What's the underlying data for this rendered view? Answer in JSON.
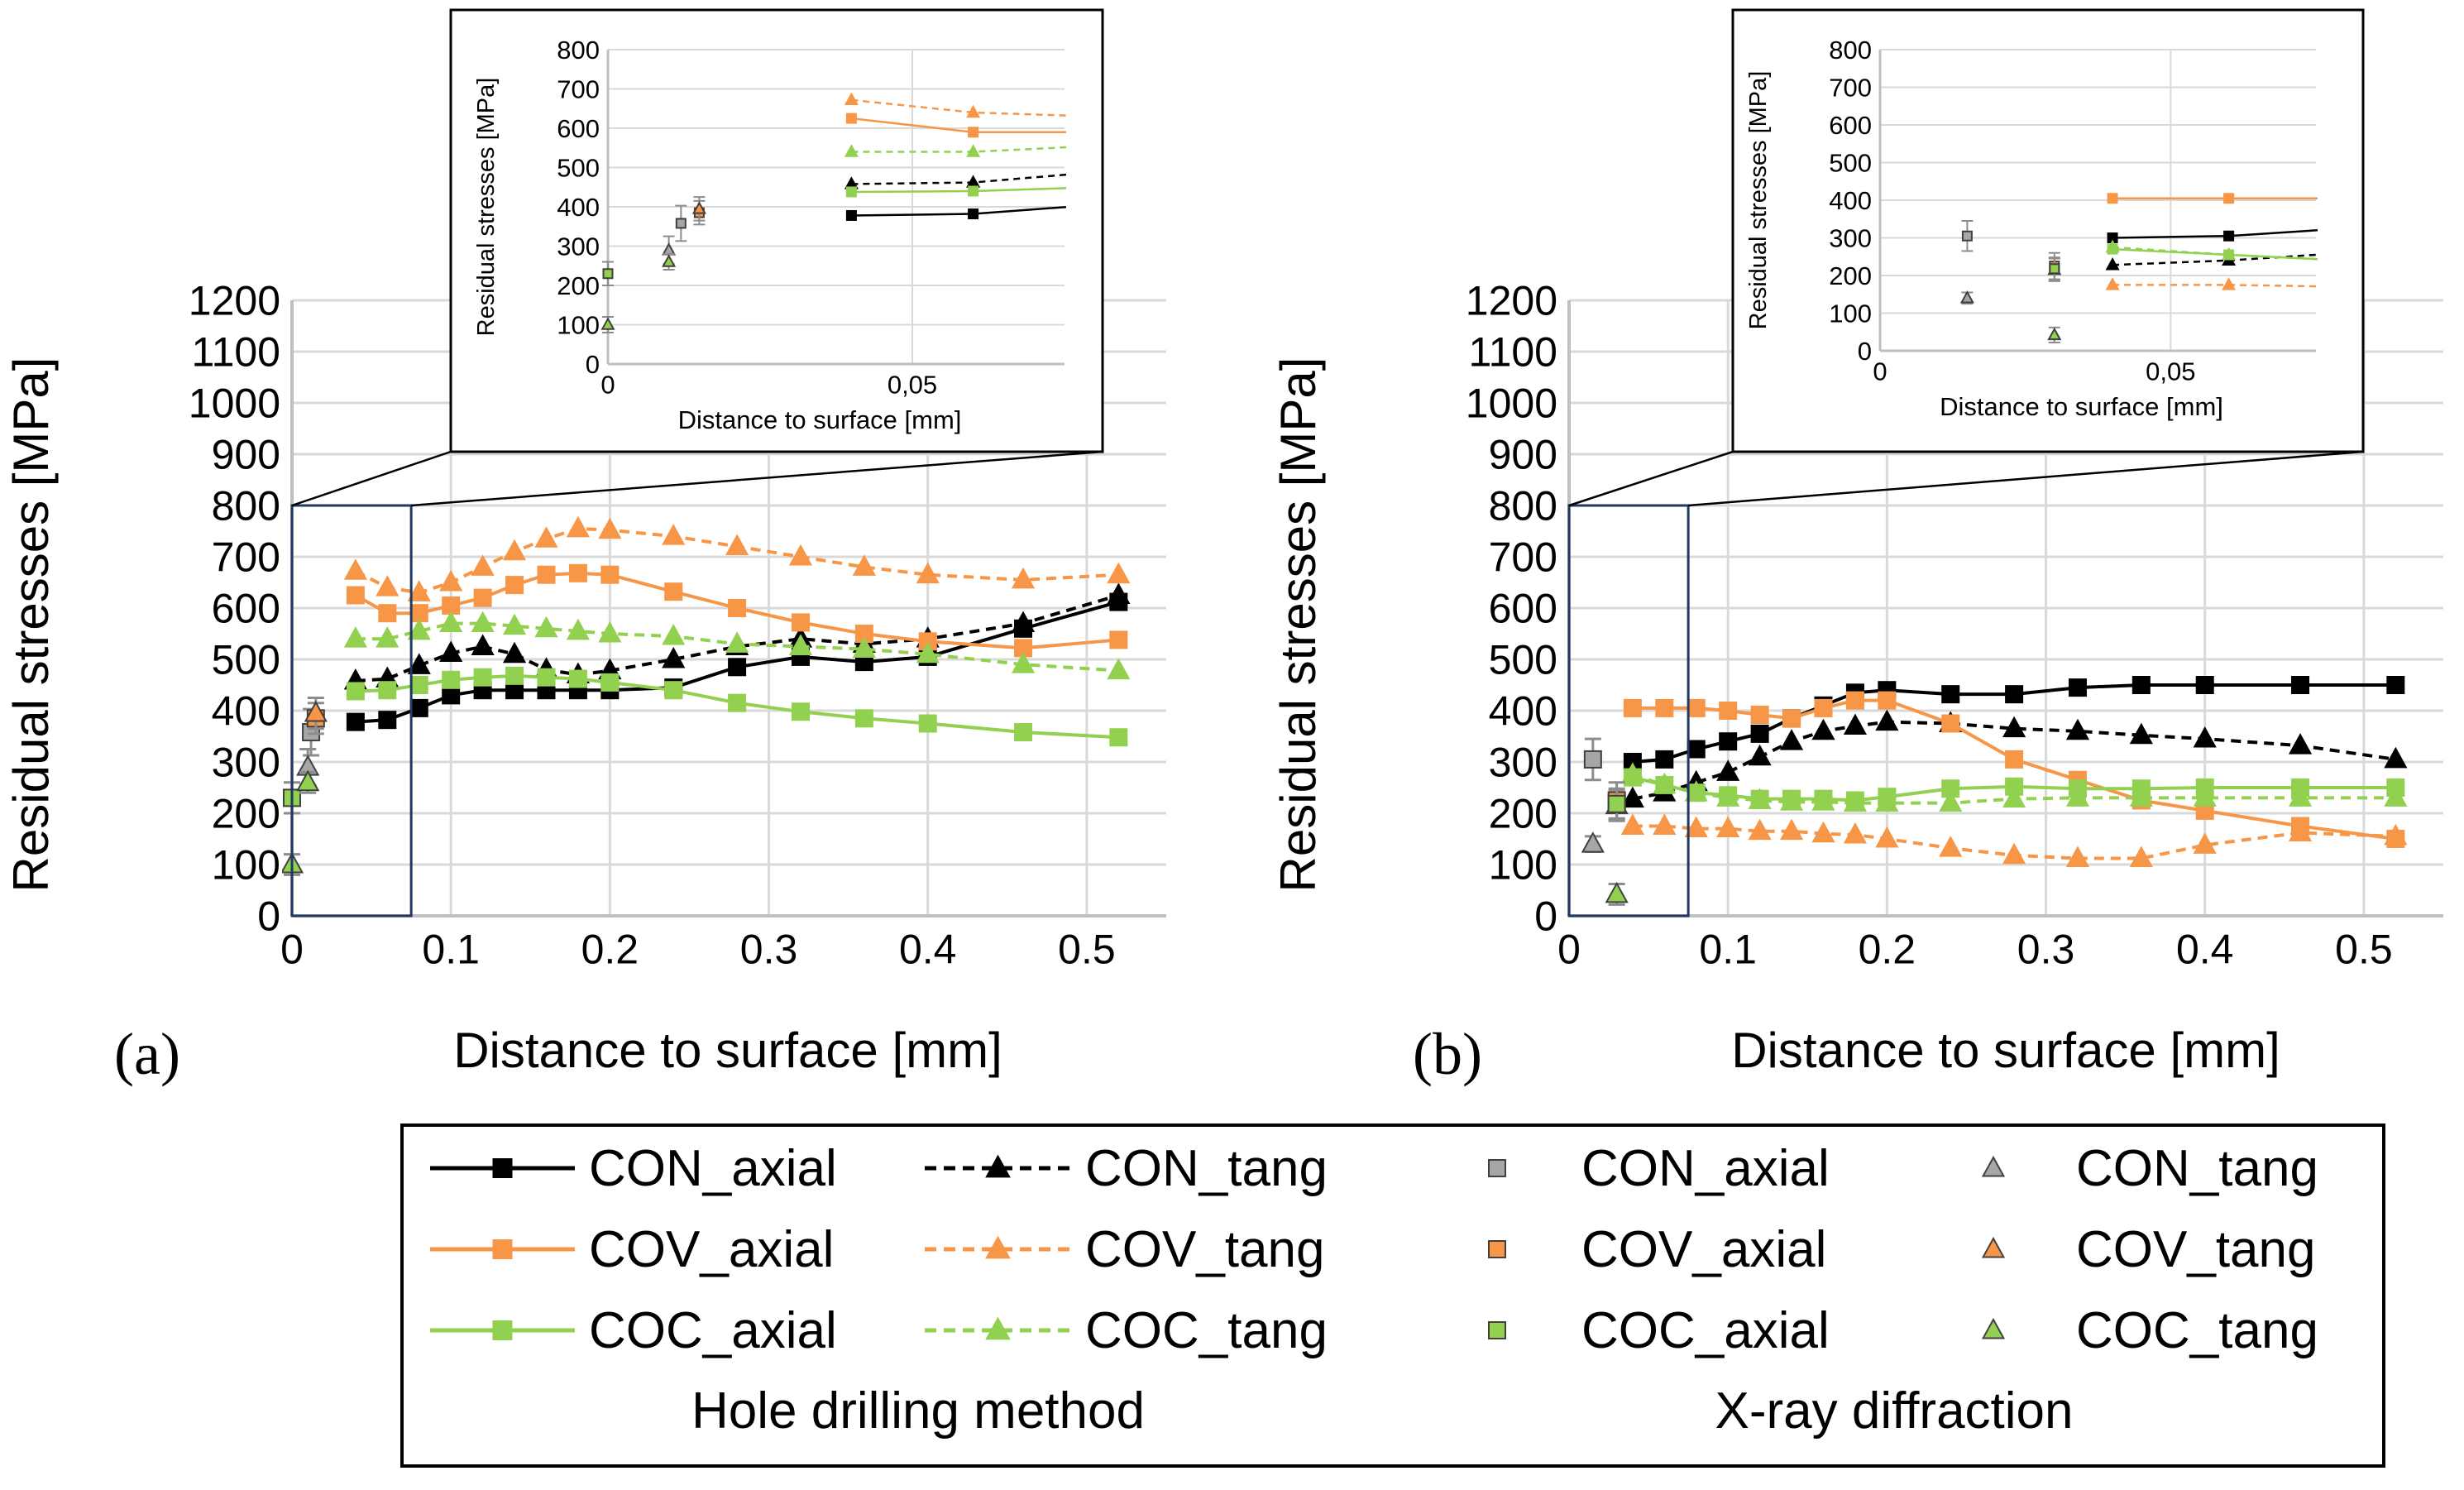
{
  "chart_data": [
    {
      "id": "a",
      "panel_label": "(a)",
      "type": "line",
      "xlabel": "Distance to surface [mm]",
      "ylabel": "Residual stresses [MPa]",
      "xlim": [
        0,
        0.55
      ],
      "ylim": [
        0,
        1200
      ],
      "xticks": [
        "0",
        "0.1",
        "0.2",
        "0.3",
        "0.4",
        "0.5"
      ],
      "xtick_values": [
        0,
        0.1,
        0.2,
        0.3,
        0.4,
        0.5
      ],
      "yticks": [
        "0",
        "100",
        "200",
        "300",
        "400",
        "500",
        "600",
        "700",
        "800",
        "900",
        "1000",
        "1100",
        "1200"
      ],
      "ytick_values": [
        0,
        100,
        200,
        300,
        400,
        500,
        600,
        700,
        800,
        900,
        1000,
        1100,
        1200
      ],
      "zoom_region": {
        "x": [
          0,
          0.075
        ],
        "y": [
          0,
          800
        ]
      },
      "series": [
        {
          "name": "CON_axial",
          "method": "hole",
          "color": "#000000",
          "style": "solid",
          "marker": "square",
          "x": [
            0.04,
            0.06,
            0.08,
            0.1,
            0.12,
            0.14,
            0.16,
            0.18,
            0.2,
            0.24,
            0.28,
            0.32,
            0.36,
            0.4,
            0.46,
            0.52
          ],
          "y": [
            378,
            382,
            405,
            430,
            440,
            440,
            440,
            440,
            440,
            445,
            485,
            505,
            495,
            505,
            560,
            612
          ]
        },
        {
          "name": "CON_tang",
          "method": "hole",
          "color": "#000000",
          "style": "dashed",
          "marker": "triangle",
          "x": [
            0.04,
            0.06,
            0.08,
            0.1,
            0.12,
            0.14,
            0.16,
            0.18,
            0.2,
            0.24,
            0.28,
            0.32,
            0.36,
            0.4,
            0.46,
            0.52
          ],
          "y": [
            458,
            462,
            488,
            512,
            525,
            510,
            480,
            470,
            478,
            500,
            525,
            540,
            530,
            540,
            570,
            625
          ]
        },
        {
          "name": "COV_axial",
          "method": "hole",
          "color": "#f79646",
          "style": "solid",
          "marker": "square",
          "x": [
            0.04,
            0.06,
            0.08,
            0.1,
            0.12,
            0.14,
            0.16,
            0.18,
            0.2,
            0.24,
            0.28,
            0.32,
            0.36,
            0.4,
            0.46,
            0.52
          ],
          "y": [
            625,
            590,
            590,
            605,
            620,
            645,
            665,
            668,
            665,
            632,
            600,
            572,
            550,
            535,
            522,
            538
          ]
        },
        {
          "name": "COV_tang",
          "method": "hole",
          "color": "#f79646",
          "style": "dashed",
          "marker": "triangle",
          "x": [
            0.04,
            0.06,
            0.08,
            0.1,
            0.12,
            0.14,
            0.16,
            0.18,
            0.2,
            0.24,
            0.28,
            0.32,
            0.36,
            0.4,
            0.46,
            0.52
          ],
          "y": [
            672,
            640,
            630,
            650,
            680,
            710,
            735,
            755,
            752,
            740,
            720,
            700,
            680,
            665,
            655,
            665
          ]
        },
        {
          "name": "COC_axial",
          "method": "hole",
          "color": "#92d050",
          "style": "solid",
          "marker": "square",
          "x": [
            0.04,
            0.06,
            0.08,
            0.1,
            0.12,
            0.14,
            0.16,
            0.18,
            0.2,
            0.24,
            0.28,
            0.32,
            0.36,
            0.4,
            0.46,
            0.52
          ],
          "y": [
            438,
            440,
            450,
            460,
            465,
            468,
            465,
            462,
            455,
            440,
            415,
            398,
            385,
            375,
            358,
            348
          ]
        },
        {
          "name": "COC_tang",
          "method": "hole",
          "color": "#92d050",
          "style": "dashed",
          "marker": "triangle",
          "x": [
            0.04,
            0.06,
            0.08,
            0.1,
            0.12,
            0.14,
            0.16,
            0.18,
            0.2,
            0.24,
            0.28,
            0.32,
            0.36,
            0.4,
            0.46,
            0.52
          ],
          "y": [
            540,
            540,
            555,
            570,
            570,
            565,
            560,
            555,
            550,
            545,
            530,
            525,
            520,
            510,
            490,
            478
          ]
        },
        {
          "name": "CON_axial",
          "method": "xrd",
          "color": "#a6a6a6",
          "marker": "square",
          "x": [
            0.012
          ],
          "y": [
            358
          ],
          "err": [
            45
          ]
        },
        {
          "name": "CON_tang",
          "method": "xrd",
          "color": "#a6a6a6",
          "marker": "triangle",
          "x": [
            0.01
          ],
          "y": [
            290
          ],
          "err": [
            35
          ]
        },
        {
          "name": "COV_axial",
          "method": "xrd",
          "color": "#f79646",
          "marker": "square",
          "x": [
            0.015
          ],
          "y": [
            385
          ],
          "err": [
            30
          ]
        },
        {
          "name": "COV_tang",
          "method": "xrd",
          "color": "#f79646",
          "marker": "triangle",
          "x": [
            0.015
          ],
          "y": [
            395
          ],
          "err": [
            30
          ]
        },
        {
          "name": "COC_axial",
          "method": "xrd",
          "color": "#92d050",
          "marker": "square",
          "x": [
            0.0
          ],
          "y": [
            230
          ],
          "err": [
            30
          ]
        },
        {
          "name": "COC_tang",
          "method": "xrd",
          "color": "#92d050",
          "marker": "triangle",
          "x": [
            0.0,
            0.01
          ],
          "y": [
            100,
            260
          ],
          "err": [
            20,
            20
          ]
        }
      ],
      "inset": {
        "xlabel": "Distance to surface [mm]",
        "ylabel": "Residual stresses [MPa]",
        "xlim": [
          0,
          0.075
        ],
        "ylim": [
          0,
          800
        ],
        "xticks": [
          "0",
          "0,05"
        ],
        "xtick_values": [
          0,
          0.05
        ],
        "yticks": [
          "0",
          "100",
          "200",
          "300",
          "400",
          "500",
          "600",
          "700",
          "800"
        ],
        "ytick_values": [
          0,
          100,
          200,
          300,
          400,
          500,
          600,
          700,
          800
        ]
      }
    },
    {
      "id": "b",
      "panel_label": "(b)",
      "type": "line",
      "xlabel": "Distance to surface [mm]",
      "ylabel": "Residual stresses [MPa]",
      "xlim": [
        0,
        0.55
      ],
      "ylim": [
        0,
        1200
      ],
      "xticks": [
        "0",
        "0.1",
        "0.2",
        "0.3",
        "0.4",
        "0.5"
      ],
      "xtick_values": [
        0,
        0.1,
        0.2,
        0.3,
        0.4,
        0.5
      ],
      "yticks": [
        "0",
        "100",
        "200",
        "300",
        "400",
        "500",
        "600",
        "700",
        "800",
        "900",
        "1000",
        "1100",
        "1200"
      ],
      "ytick_values": [
        0,
        100,
        200,
        300,
        400,
        500,
        600,
        700,
        800,
        900,
        1000,
        1100,
        1200
      ],
      "zoom_region": {
        "x": [
          0,
          0.075
        ],
        "y": [
          0,
          800
        ]
      },
      "series": [
        {
          "name": "CON_axial",
          "method": "hole",
          "color": "#000000",
          "style": "solid",
          "marker": "square",
          "x": [
            0.04,
            0.06,
            0.08,
            0.1,
            0.12,
            0.14,
            0.16,
            0.18,
            0.2,
            0.24,
            0.28,
            0.32,
            0.36,
            0.4,
            0.46,
            0.52
          ],
          "y": [
            300,
            305,
            325,
            340,
            355,
            385,
            410,
            435,
            440,
            432,
            432,
            445,
            450,
            450,
            450,
            450
          ]
        },
        {
          "name": "CON_tang",
          "method": "hole",
          "color": "#000000",
          "style": "dashed",
          "marker": "triangle",
          "x": [
            0.04,
            0.06,
            0.08,
            0.1,
            0.12,
            0.14,
            0.16,
            0.18,
            0.2,
            0.24,
            0.28,
            0.32,
            0.36,
            0.4,
            0.46,
            0.52
          ],
          "y": [
            228,
            240,
            260,
            280,
            310,
            340,
            360,
            370,
            378,
            375,
            365,
            360,
            352,
            345,
            332,
            305
          ]
        },
        {
          "name": "COV_axial",
          "method": "hole",
          "color": "#f79646",
          "style": "solid",
          "marker": "square",
          "x": [
            0.04,
            0.06,
            0.08,
            0.1,
            0.12,
            0.14,
            0.16,
            0.18,
            0.2,
            0.24,
            0.28,
            0.32,
            0.36,
            0.4,
            0.46,
            0.52
          ],
          "y": [
            405,
            405,
            405,
            400,
            392,
            385,
            405,
            420,
            420,
            375,
            305,
            265,
            225,
            205,
            175,
            150
          ]
        },
        {
          "name": "COV_tang",
          "method": "hole",
          "color": "#f79646",
          "style": "dashed",
          "marker": "triangle",
          "x": [
            0.04,
            0.06,
            0.08,
            0.1,
            0.12,
            0.14,
            0.16,
            0.18,
            0.2,
            0.24,
            0.28,
            0.32,
            0.36,
            0.4,
            0.46,
            0.52
          ],
          "y": [
            175,
            175,
            170,
            170,
            165,
            165,
            160,
            158,
            150,
            132,
            118,
            112,
            112,
            138,
            162,
            155
          ]
        },
        {
          "name": "COC_axial",
          "method": "hole",
          "color": "#92d050",
          "style": "solid",
          "marker": "square",
          "x": [
            0.04,
            0.06,
            0.08,
            0.1,
            0.12,
            0.14,
            0.16,
            0.18,
            0.2,
            0.24,
            0.28,
            0.32,
            0.36,
            0.4,
            0.46,
            0.52
          ],
          "y": [
            270,
            255,
            240,
            235,
            228,
            228,
            228,
            225,
            232,
            248,
            252,
            248,
            248,
            250,
            250,
            250
          ]
        },
        {
          "name": "COC_tang",
          "method": "hole",
          "color": "#92d050",
          "style": "dashed",
          "marker": "triangle",
          "x": [
            0.04,
            0.06,
            0.08,
            0.1,
            0.12,
            0.14,
            0.16,
            0.18,
            0.2,
            0.24,
            0.28,
            0.32,
            0.36,
            0.4,
            0.46,
            0.52
          ],
          "y": [
            275,
            255,
            240,
            230,
            225,
            222,
            222,
            220,
            220,
            220,
            228,
            230,
            230,
            230,
            230,
            230
          ]
        },
        {
          "name": "CON_axial",
          "method": "xrd",
          "color": "#a6a6a6",
          "marker": "square",
          "x": [
            0.015
          ],
          "y": [
            305
          ],
          "err": [
            40
          ]
        },
        {
          "name": "CON_tang",
          "method": "xrd",
          "color": "#a6a6a6",
          "marker": "triangle",
          "x": [
            0.015
          ],
          "y": [
            140
          ],
          "err": [
            15
          ]
        },
        {
          "name": "COV_axial",
          "method": "xrd",
          "color": "#f79646",
          "marker": "square",
          "x": [
            0.03
          ],
          "y": [
            225
          ],
          "err": [
            35
          ]
        },
        {
          "name": "COV_tang",
          "method": "xrd",
          "color": "#f79646",
          "marker": "triangle",
          "x": [
            0.03
          ],
          "y": [
            215
          ],
          "err": [
            30
          ]
        },
        {
          "name": "COC_axial",
          "method": "xrd",
          "color": "#92d050",
          "marker": "square",
          "x": [
            0.03
          ],
          "y": [
            218
          ],
          "err": [
            30
          ]
        },
        {
          "name": "COC_tang",
          "method": "xrd",
          "color": "#92d050",
          "marker": "triangle",
          "x": [
            0.03
          ],
          "y": [
            42
          ],
          "err": [
            20
          ]
        }
      ],
      "inset": {
        "xlabel": "Distance to surface [mm]",
        "ylabel": "Residual stresses [MPa]",
        "xlim": [
          0,
          0.075
        ],
        "ylim": [
          0,
          800
        ],
        "xticks": [
          "0",
          "0,05"
        ],
        "xtick_values": [
          0,
          0.05
        ],
        "yticks": [
          "0",
          "100",
          "200",
          "300",
          "400",
          "500",
          "600",
          "700",
          "800"
        ],
        "ytick_values": [
          0,
          100,
          200,
          300,
          400,
          500,
          600,
          700,
          800
        ]
      }
    }
  ],
  "legend": {
    "entries": [
      {
        "label": "CON_axial",
        "color": "#000000",
        "style": "solid",
        "marker": "square",
        "method": "hole"
      },
      {
        "label": "CON_tang",
        "color": "#000000",
        "style": "dashed",
        "marker": "triangle",
        "method": "hole"
      },
      {
        "label": "CON_axial",
        "color": "#a6a6a6",
        "marker": "square",
        "method": "xrd"
      },
      {
        "label": "CON_tang",
        "color": "#a6a6a6",
        "marker": "triangle",
        "method": "xrd"
      },
      {
        "label": "COV_axial",
        "color": "#f79646",
        "style": "solid",
        "marker": "square",
        "method": "hole"
      },
      {
        "label": "COV_tang",
        "color": "#f79646",
        "style": "dashed",
        "marker": "triangle",
        "method": "hole"
      },
      {
        "label": "COV_axial",
        "color": "#f79646",
        "marker": "square",
        "method": "xrd"
      },
      {
        "label": "COV_tang",
        "color": "#f79646",
        "marker": "triangle",
        "method": "xrd"
      },
      {
        "label": "COC_axial",
        "color": "#92d050",
        "style": "solid",
        "marker": "square",
        "method": "hole"
      },
      {
        "label": "COC_tang",
        "color": "#92d050",
        "style": "dashed",
        "marker": "triangle",
        "method": "hole"
      },
      {
        "label": "COC_axial",
        "color": "#92d050",
        "marker": "square",
        "method": "xrd"
      },
      {
        "label": "COC_tang",
        "color": "#92d050",
        "marker": "triangle",
        "method": "xrd"
      }
    ],
    "group_hole": "Hole drilling  method",
    "group_xrd": "X-ray diffraction"
  },
  "colors": {
    "grid": "#d9d9d9",
    "zoom_box": "#1f3864",
    "axis": "#bfbfbf",
    "text": "#000000"
  }
}
